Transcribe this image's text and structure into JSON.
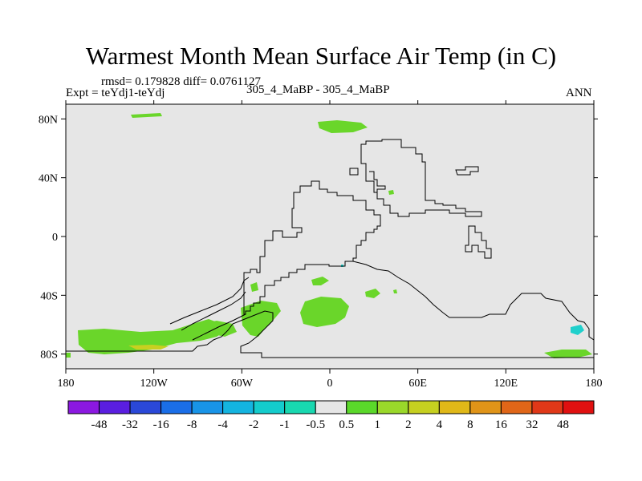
{
  "chart_data": {
    "type": "heatmap",
    "title": "Warmest Month Mean Surface Air Temp (in C)",
    "stats_line": "rmsd= 0.179828 diff= 0.0761127",
    "experiment_label": "Expt = teYdj1-teYdj",
    "center_label": "305_4_MaBP - 305_4_MaBP",
    "right_label": "ANN",
    "x_ticks": [
      {
        "value": -180,
        "label": "180"
      },
      {
        "value": -120,
        "label": "120W"
      },
      {
        "value": -60,
        "label": "60W"
      },
      {
        "value": 0,
        "label": "0"
      },
      {
        "value": 60,
        "label": "60E"
      },
      {
        "value": 120,
        "label": "120E"
      },
      {
        "value": 180,
        "label": "180"
      }
    ],
    "y_ticks": [
      {
        "value": 80,
        "label": "80N"
      },
      {
        "value": 40,
        "label": "40N"
      },
      {
        "value": 0,
        "label": "0"
      },
      {
        "value": -40,
        "label": "40S"
      },
      {
        "value": -80,
        "label": "80S"
      }
    ],
    "xlim": [
      -180,
      180
    ],
    "ylim": [
      -90,
      90
    ],
    "colorbar": {
      "labels": [
        "-48",
        "-32",
        "-16",
        "-8",
        "-4",
        "-2",
        "-1",
        "-0.5",
        "0.5",
        "1",
        "2",
        "4",
        "8",
        "16",
        "32",
        "48"
      ],
      "colors": [
        "#8b18e0",
        "#5a1ee0",
        "#2a48d8",
        "#1a6ee8",
        "#1894e8",
        "#14b4e0",
        "#14cccc",
        "#18d8b0",
        "#e6e6e6",
        "#5ad82a",
        "#9ad82a",
        "#c6d020",
        "#e0b818",
        "#e09418",
        "#e06618",
        "#e03818",
        "#e01010"
      ]
    },
    "background_color": "#e6e6e6",
    "anomaly_color": "#6ad62a",
    "warm_color": "#c8d020",
    "coast_color": "#000000"
  }
}
